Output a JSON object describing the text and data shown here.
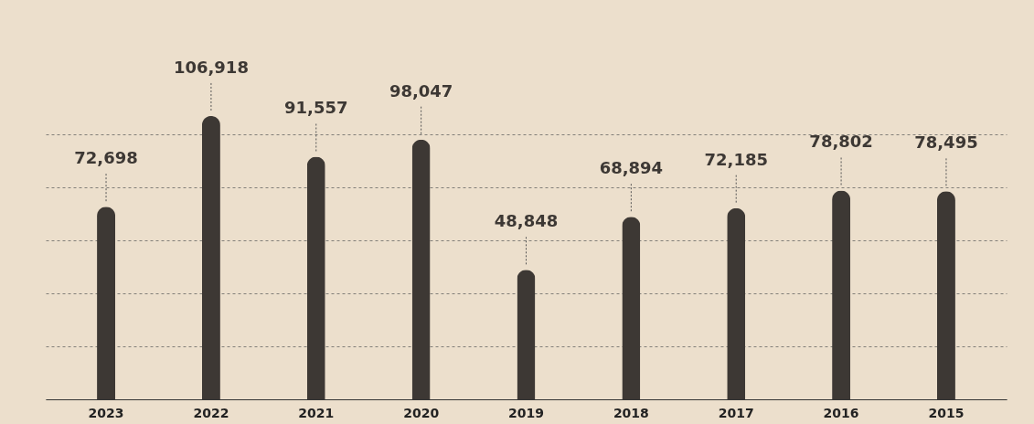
{
  "chart_data": {
    "type": "bar",
    "categories": [
      "2023",
      "2022",
      "2021",
      "2020",
      "2019",
      "2018",
      "2017",
      "2016",
      "2015"
    ],
    "values": [
      72698,
      106918,
      91557,
      98047,
      48848,
      68894,
      72185,
      78802,
      78495
    ],
    "value_labels": [
      "72,698",
      "106,918",
      "91,557",
      "98,047",
      "48,848",
      "68,894",
      "72,185",
      "78,802",
      "78,495"
    ],
    "color": "#3d3834",
    "grid": "y",
    "tick_labels": "x"
  }
}
